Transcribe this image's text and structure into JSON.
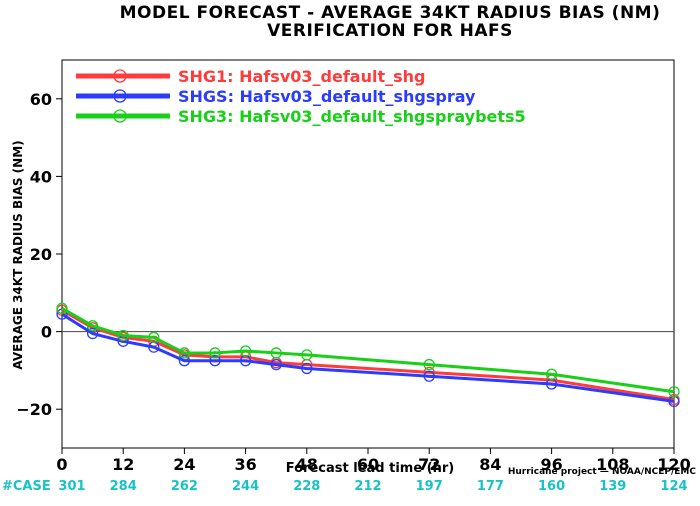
{
  "chart_data": {
    "type": "line",
    "title": "MODEL FORECAST - AVERAGE 34KT RADIUS BIAS (NM)",
    "subtitle": "VERIFICATION FOR HAFS",
    "xlabel": "Forecast lead time (hr)",
    "ylabel": "AVERAGE 34KT RADIUS BIAS (NM)",
    "xlim": [
      0,
      120
    ],
    "ylim": [
      -30,
      70
    ],
    "x_ticks": [
      0,
      12,
      24,
      36,
      48,
      60,
      72,
      84,
      96,
      108,
      120
    ],
    "y_ticks": [
      -20,
      0,
      20,
      40,
      60
    ],
    "x_tick_labels": [
      "0",
      "12",
      "24",
      "36",
      "48",
      "60",
      "72",
      "84",
      "96",
      "108",
      "120"
    ],
    "y_tick_labels": [
      "−20",
      "0",
      "20",
      "40",
      "60"
    ],
    "zero_line": true,
    "grid": false,
    "legend_position": "top-left",
    "case_label": "#CASE",
    "case_counts": [
      "301",
      "284",
      "262",
      "244",
      "228",
      "212",
      "197",
      "177",
      "160",
      "139",
      "124"
    ],
    "credit": "Hurricane project — NOAA/NCEP/EMC",
    "x": [
      0,
      6,
      12,
      18,
      24,
      30,
      36,
      42,
      48,
      72,
      96,
      120
    ],
    "series": [
      {
        "name": "SHG1: Hafsv03_default_shg",
        "color": "#ff3b3b",
        "values": [
          5.5,
          1.0,
          -1.5,
          -2.5,
          -6.0,
          -6.5,
          -6.5,
          -8.0,
          -8.5,
          -10.5,
          -12.5,
          -17.5
        ]
      },
      {
        "name": "SHGS: Hafsv03_default_shgspray",
        "color": "#2b3cff",
        "values": [
          4.5,
          -0.5,
          -2.5,
          -4.0,
          -7.5,
          -7.5,
          -7.5,
          -8.5,
          -9.5,
          -11.5,
          -13.5,
          -18.0
        ]
      },
      {
        "name": "SHG3: Hafsv03_default_shgspraybets5",
        "color": "#18d018",
        "values": [
          6.0,
          1.5,
          -1.0,
          -1.5,
          -5.5,
          -5.5,
          -5.0,
          -5.5,
          -6.0,
          -8.5,
          -11.0,
          -15.5
        ]
      }
    ]
  }
}
